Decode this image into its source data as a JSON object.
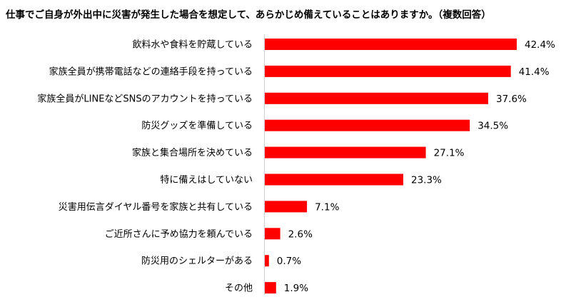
{
  "chart_data": {
    "type": "bar",
    "orientation": "horizontal",
    "title": "仕事でご自身が外出中に災害が発生した場合を想定して、あらかじめ備えていることはありますか。（複数回答）",
    "categories": [
      "飲料水や食料を貯蔵している",
      "家族全員が携帯電話などの連絡手段を持っている",
      "家族全員がLINEなどSNSのアカウントを持っている",
      "防災グッズを準備している",
      "家族と集合場所を決めている",
      "特に備えはしていない",
      "災害用伝言ダイヤル番号を家族と共有している",
      "ご近所さんに予め協力を頼んでいる",
      "防災用のシェルターがある",
      "その他"
    ],
    "values": [
      42.4,
      41.4,
      37.6,
      34.5,
      27.1,
      23.3,
      7.1,
      2.6,
      0.7,
      1.9
    ],
    "value_labels": [
      "42.4%",
      "41.4%",
      "37.6%",
      "34.5%",
      "27.1%",
      "23.3%",
      "7.1%",
      "2.6%",
      "0.7%",
      "1.9%"
    ],
    "bar_color": "#ff0000",
    "grid": false,
    "legend": "none"
  }
}
